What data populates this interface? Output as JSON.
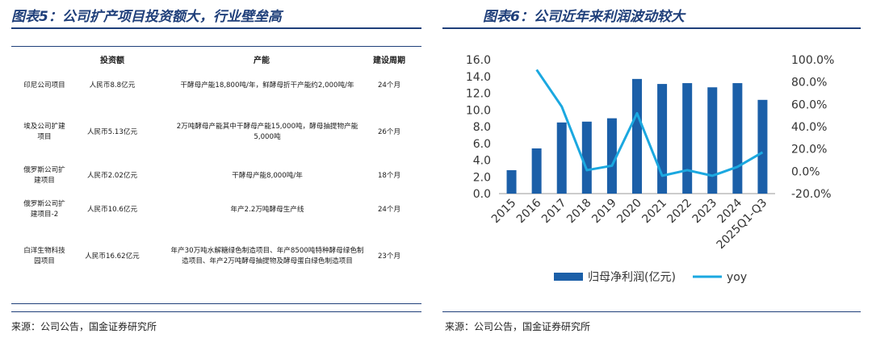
{
  "left": {
    "title": "图表5：公司扩产项目投资额大，行业壁垒高",
    "source": "来源：公司公告，国金证券研究所",
    "headers": [
      "",
      "投资额",
      "产能",
      "建设周期"
    ],
    "rows": [
      [
        "印尼公司项目",
        "人民币8.8亿元",
        "干酵母产能18,800吨/年，鲜酵母折干产能约2,000吨/年",
        "24个月"
      ],
      [
        "埃及公司扩建项目",
        "人民币5.13亿元",
        "2万吨酵母产能其中干酵母产能15,000吨，酵母抽提物产能5,000吨",
        "26个月"
      ],
      [
        "俄罗斯公司扩建项目",
        "人民币2.02亿元",
        "干酵母产能8,000吨/年",
        "18个月"
      ],
      [
        "俄罗斯公司扩建项目-2",
        "人民币10.6亿元",
        "年产2.2万吨酵母生产线",
        "24个月"
      ],
      [
        "白洋生物科技园项目",
        "人民币16.62亿元",
        "年产30万吨水解糖绿色制造项目、年产8500吨特种酵母绿色制造项目、年产2万吨酵母抽提物及酵母蛋白绿色制造项目",
        "23个月"
      ]
    ]
  },
  "right": {
    "title": "图表6：公司近年来利润波动较大",
    "source": "来源：公司公告，国金证券研究所"
  },
  "colors": {
    "title": "#1f3f7a",
    "bar": "#1b5fa8",
    "line": "#1ba8e0"
  },
  "chart_data": {
    "type": "bar",
    "categories": [
      "2015",
      "2016",
      "2017",
      "2018",
      "2019",
      "2020",
      "2021",
      "2022",
      "2023",
      "2024",
      "2025Q1-Q3"
    ],
    "series": [
      {
        "name": "归母净利润(亿元)",
        "type": "bar",
        "axis": "left",
        "values": [
          2.8,
          5.4,
          8.5,
          8.6,
          9.0,
          13.7,
          13.1,
          13.2,
          12.7,
          13.2,
          11.2
        ]
      },
      {
        "name": "yoy",
        "type": "line",
        "axis": "right",
        "values": [
          null,
          91.0,
          58.0,
          1.0,
          5.0,
          52.0,
          -4.0,
          1.0,
          -4.0,
          4.0,
          17.0
        ]
      }
    ],
    "y_left": {
      "ticks": [
        "16.0",
        "14.0",
        "12.0",
        "10.0",
        "8.0",
        "6.0",
        "4.0",
        "2.0",
        "0.0"
      ],
      "ylim": [
        0,
        16
      ]
    },
    "y_right": {
      "ticks": [
        "100.0%",
        "80.0%",
        "60.0%",
        "40.0%",
        "20.0%",
        "0.0%",
        "-20.0%"
      ],
      "ylim": [
        -20,
        100
      ]
    },
    "legend": "bottom"
  }
}
